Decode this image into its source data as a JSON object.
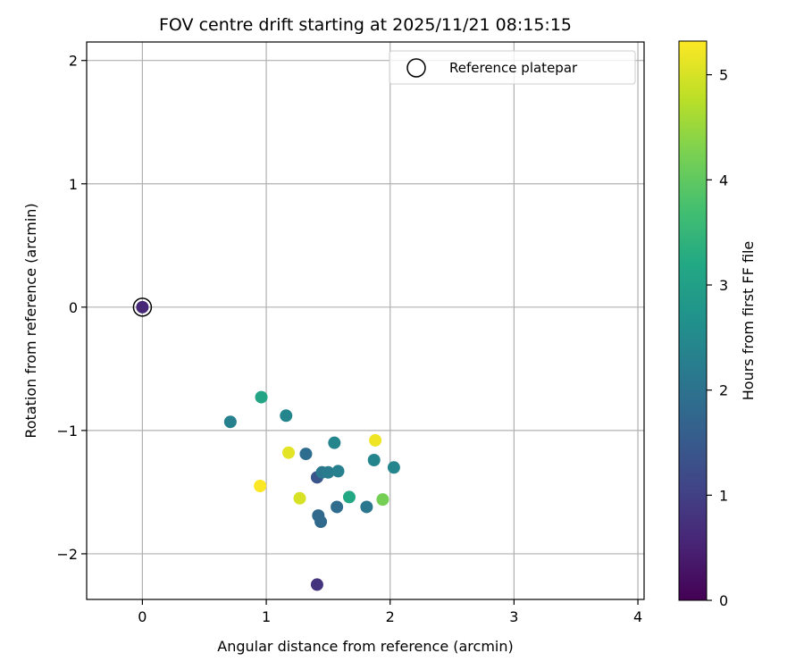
{
  "chart_data": {
    "type": "scatter",
    "title": "FOV centre drift starting at 2025/11/21 08:15:15",
    "xlabel": "Angular distance from reference (arcmin)",
    "ylabel": "Rotation from reference (arcmin)",
    "xlim": [
      -0.45,
      4.05
    ],
    "ylim": [
      -2.37,
      2.15
    ],
    "x_ticks": [
      0,
      1,
      2,
      3,
      4
    ],
    "x_tick_labels": [
      "0",
      "1",
      "2",
      "3",
      "4"
    ],
    "y_ticks": [
      -2,
      -1,
      0,
      1,
      2
    ],
    "y_tick_labels": [
      "−2",
      "−1",
      "0",
      "1",
      "2"
    ],
    "grid": true,
    "legend": {
      "placement": "top-right",
      "entries": [
        {
          "label": "Reference platepar",
          "marker": "open-circle"
        }
      ]
    },
    "reference_point": {
      "x": 0,
      "y": 0
    },
    "colorbar": {
      "label": "Hours from first FF file",
      "range": [
        0,
        5.32
      ],
      "ticks": [
        0,
        1,
        2,
        3,
        4,
        5
      ],
      "tick_labels": [
        "0",
        "1",
        "2",
        "3",
        "4",
        "5"
      ],
      "colormap": "viridis"
    },
    "points": [
      {
        "x": 0.0,
        "y": 0.0,
        "hours": 0.6
      },
      {
        "x": 1.41,
        "y": -2.25,
        "hours": 0.8
      },
      {
        "x": 1.41,
        "y": -1.38,
        "hours": 1.4
      },
      {
        "x": 1.42,
        "y": -1.69,
        "hours": 1.8
      },
      {
        "x": 1.44,
        "y": -1.74,
        "hours": 1.8
      },
      {
        "x": 1.57,
        "y": -1.62,
        "hours": 1.9
      },
      {
        "x": 1.81,
        "y": -1.62,
        "hours": 2.1
      },
      {
        "x": 1.32,
        "y": -1.19,
        "hours": 1.9
      },
      {
        "x": 1.45,
        "y": -1.34,
        "hours": 2.1
      },
      {
        "x": 1.5,
        "y": -1.34,
        "hours": 2.2
      },
      {
        "x": 1.58,
        "y": -1.33,
        "hours": 2.3
      },
      {
        "x": 1.55,
        "y": -1.1,
        "hours": 2.4
      },
      {
        "x": 1.87,
        "y": -1.24,
        "hours": 2.4
      },
      {
        "x": 2.03,
        "y": -1.3,
        "hours": 2.4
      },
      {
        "x": 0.71,
        "y": -0.93,
        "hours": 2.3
      },
      {
        "x": 1.16,
        "y": -0.88,
        "hours": 2.4
      },
      {
        "x": 0.96,
        "y": -0.73,
        "hours": 3.1
      },
      {
        "x": 1.67,
        "y": -1.54,
        "hours": 3.2
      },
      {
        "x": 1.94,
        "y": -1.56,
        "hours": 4.2
      },
      {
        "x": 1.18,
        "y": -1.18,
        "hours": 5.1
      },
      {
        "x": 1.27,
        "y": -1.55,
        "hours": 5.0
      },
      {
        "x": 1.88,
        "y": -1.08,
        "hours": 5.2
      },
      {
        "x": 0.95,
        "y": -1.45,
        "hours": 5.3
      }
    ]
  }
}
